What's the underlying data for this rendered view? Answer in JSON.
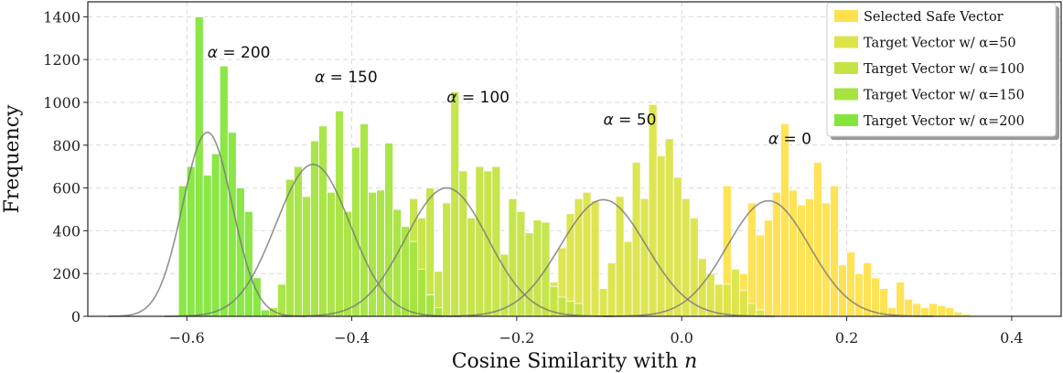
{
  "chart_data": {
    "type": "histogram",
    "title": "",
    "xlabel_prefix": "Cosine Similarity with ",
    "xlabel_var": "n",
    "ylabel": "Frequency",
    "xlim": [
      -0.72,
      0.46
    ],
    "ylim": [
      0,
      1470
    ],
    "xticks": [
      -0.6,
      -0.4,
      -0.2,
      0.0,
      0.2,
      0.4
    ],
    "xtick_labels": [
      "−0.6",
      "−0.4",
      "−0.2",
      "0.0",
      "0.2",
      "0.4"
    ],
    "yticks": [
      0,
      200,
      400,
      600,
      800,
      1000,
      1200,
      1400
    ],
    "ytick_labels": [
      "0",
      "200",
      "400",
      "600",
      "800",
      "1000",
      "1200",
      "1400"
    ],
    "grid": true,
    "legend_position": "top-right",
    "bin_width": 0.01,
    "series": [
      {
        "name": "Selected Safe Vector",
        "color": "#ffe14d",
        "bin_start": 0.04,
        "values": [
          130,
          610,
          80,
          200,
          530,
          380,
          450,
          580,
          900,
          590,
          520,
          550,
          720,
          530,
          610,
          240,
          300,
          200,
          250,
          180,
          130,
          40,
          160,
          80,
          60,
          40,
          60,
          50,
          40,
          20,
          10
        ],
        "kde_mean": 0.105,
        "kde_peak": 540,
        "kde_sigma": 0.05
      },
      {
        "name": "Target Vector w/ α=50",
        "color": "#dce44a",
        "bin_start": -0.17,
        "values": [
          50,
          160,
          320,
          480,
          550,
          580,
          540,
          130,
          250,
          560,
          350,
          720,
          550,
          990,
          750,
          830,
          650,
          550,
          460,
          270,
          200,
          150,
          150,
          220,
          120,
          60,
          30
        ],
        "kde_mean": -0.095,
        "kde_peak": 545,
        "kde_sigma": 0.052
      },
      {
        "name": "Target Vector w/ α=100",
        "color": "#c4e445",
        "bin_start": -0.34,
        "values": [
          70,
          550,
          460,
          600,
          210,
          530,
          1050,
          680,
          460,
          700,
          680,
          700,
          290,
          550,
          490,
          390,
          450,
          440,
          140,
          90,
          70,
          60
        ],
        "kde_mean": -0.285,
        "kde_peak": 600,
        "kde_sigma": 0.05
      },
      {
        "name": "Target Vector w/ α=150",
        "color": "#a6e440",
        "bin_start": -0.5,
        "values": [
          40,
          150,
          640,
          700,
          560,
          820,
          890,
          580,
          960,
          490,
          790,
          900,
          580,
          590,
          810,
          500,
          420,
          350,
          220,
          100,
          40
        ],
        "kde_mean": -0.447,
        "kde_peak": 710,
        "kde_sigma": 0.045
      },
      {
        "name": "Target Vector w/ α=200",
        "color": "#84e63c",
        "bin_start": -0.61,
        "values": [
          610,
          700,
          1400,
          660,
          760,
          1170,
          860,
          600,
          490,
          180,
          30
        ],
        "kde_mean": -0.575,
        "kde_peak": 860,
        "kde_sigma": 0.03
      }
    ],
    "annotations": [
      {
        "greek": "α",
        "rest": " = 200",
        "x": -0.575,
        "y": 1210
      },
      {
        "greek": "α",
        "rest": " = 150",
        "x": -0.445,
        "y": 1095
      },
      {
        "greek": "α",
        "rest": " = 100",
        "x": -0.285,
        "y": 1000
      },
      {
        "greek": "α",
        "rest": " = 50",
        "x": -0.095,
        "y": 895
      },
      {
        "greek": "α",
        "rest": " = 0",
        "x": 0.105,
        "y": 805
      }
    ]
  }
}
